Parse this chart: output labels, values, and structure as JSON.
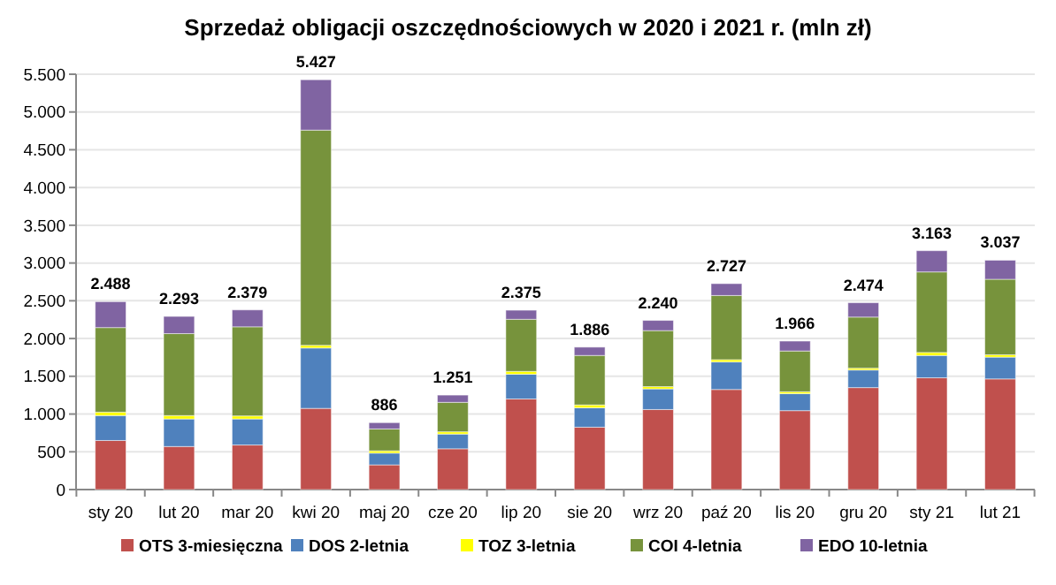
{
  "chart_data": {
    "type": "bar",
    "title": "Sprzedaż obligacji oszczędnościowych w 2020 i 2021 r. (mln zł)",
    "stacked": true,
    "categories": [
      "sty 20",
      "lut 20",
      "mar 20",
      "kwi 20",
      "maj 20",
      "cze 20",
      "lip 20",
      "sie 20",
      "wrz 20",
      "paź 20",
      "lis 20",
      "gru 20",
      "sty 21",
      "lut 21"
    ],
    "series": [
      {
        "name": "OTS 3-miesięczna",
        "color": "#c0504d",
        "values": [
          650,
          570,
          590,
          1075,
          327,
          540,
          1200,
          826,
          1060,
          1325,
          1045,
          1350,
          1480,
          1465
        ]
      },
      {
        "name": "DOS 2-letnia",
        "color": "#4f81bd",
        "values": [
          330,
          365,
          345,
          800,
          156,
          195,
          327,
          257,
          273,
          365,
          225,
          233,
          296,
          289
        ]
      },
      {
        "name": "TOZ 3-letnia",
        "color": "#ffff00",
        "values": [
          45,
          45,
          40,
          35,
          30,
          30,
          38,
          38,
          30,
          30,
          25,
          24,
          39,
          31
        ]
      },
      {
        "name": "COI 4-letnia",
        "color": "#77933c",
        "values": [
          1120,
          1085,
          1180,
          2850,
          290,
          390,
          690,
          655,
          742,
          850,
          540,
          677,
          1067,
          1000
        ]
      },
      {
        "name": "EDO 10-letnia",
        "color": "#8064a2",
        "values": [
          343,
          228,
          224,
          667,
          83,
          96,
          120,
          110,
          135,
          157,
          131,
          190,
          281,
          252
        ]
      }
    ],
    "totals": [
      "2.488",
      "2.293",
      "2.379",
      "5.427",
      "886",
      "1.251",
      "2.375",
      "1.886",
      "2.240",
      "2.727",
      "1.966",
      "2.474",
      "3.163",
      "3.037"
    ],
    "ylim": [
      0,
      5500
    ],
    "yticks": [
      {
        "value": 0,
        "label": "0"
      },
      {
        "value": 500,
        "label": "500"
      },
      {
        "value": 1000,
        "label": "1.000"
      },
      {
        "value": 1500,
        "label": "1.500"
      },
      {
        "value": 2000,
        "label": "2.000"
      },
      {
        "value": 2500,
        "label": "2.500"
      },
      {
        "value": 3000,
        "label": "3.000"
      },
      {
        "value": 3500,
        "label": "3.500"
      },
      {
        "value": 4000,
        "label": "4.000"
      },
      {
        "value": 4500,
        "label": "4.500"
      },
      {
        "value": 5000,
        "label": "5.000"
      },
      {
        "value": 5500,
        "label": "5.500"
      }
    ],
    "grid": "y",
    "legend": "bottom"
  }
}
